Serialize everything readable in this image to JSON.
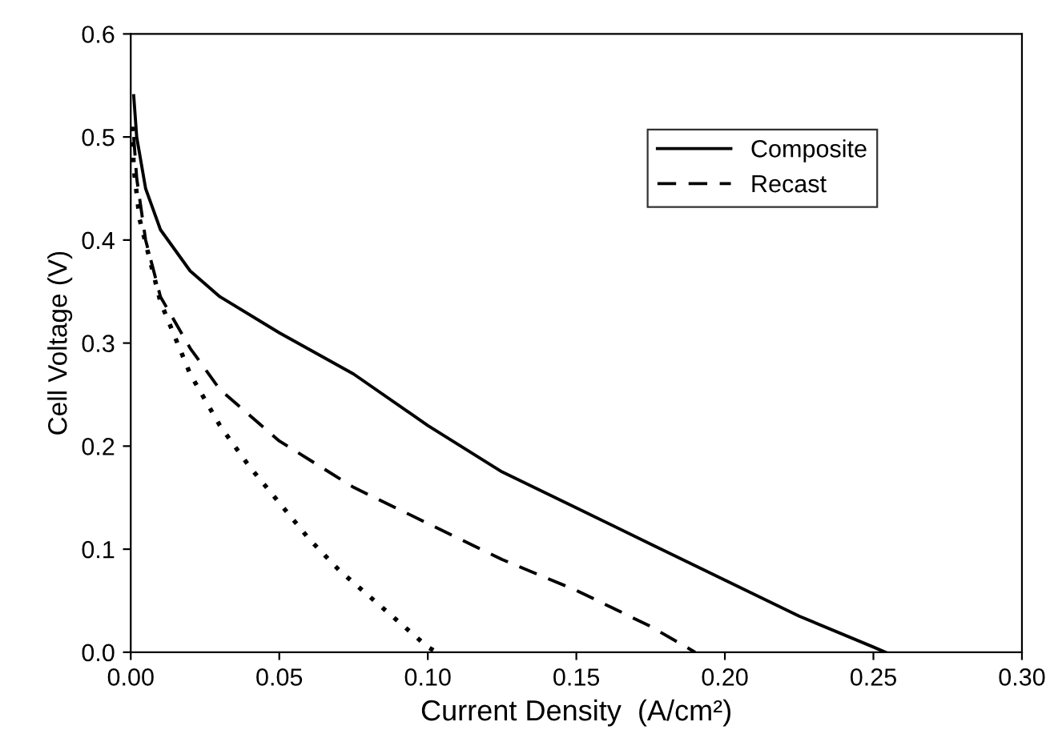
{
  "chart_data": {
    "type": "line",
    "xlabel": "Current Density  (A/cm²)",
    "ylabel": "Cell Voltage (V)",
    "xlim": [
      0,
      0.3
    ],
    "ylim": [
      0,
      0.6
    ],
    "xticks": [
      {
        "value": 0,
        "label": "0.00"
      },
      {
        "value": 0.05,
        "label": "0.05"
      },
      {
        "value": 0.1,
        "label": "0.10"
      },
      {
        "value": 0.15,
        "label": "0.15"
      },
      {
        "value": 0.2,
        "label": "0.20"
      },
      {
        "value": 0.25,
        "label": "0.25"
      },
      {
        "value": 0.3,
        "label": "0.30"
      }
    ],
    "yticks": [
      {
        "value": 0,
        "label": "0.0"
      },
      {
        "value": 0.1,
        "label": "0.1"
      },
      {
        "value": 0.2,
        "label": "0.2"
      },
      {
        "value": 0.3,
        "label": "0.3"
      },
      {
        "value": 0.4,
        "label": "0.4"
      },
      {
        "value": 0.5,
        "label": "0.5"
      },
      {
        "value": 0.6,
        "label": "0.6"
      }
    ],
    "grid": false,
    "legend": "top right",
    "marker": "none",
    "series": [
      {
        "color": "#000000",
        "line_style": "dotted",
        "x": [
          0.0005,
          0.001,
          0.003,
          0.01,
          0.02,
          0.03,
          0.04,
          0.05,
          0.06,
          0.07,
          0.08,
          0.09,
          0.1,
          0.103
        ],
        "values": [
          0.51,
          0.47,
          0.42,
          0.34,
          0.27,
          0.22,
          0.18,
          0.145,
          0.11,
          0.08,
          0.055,
          0.03,
          0.005,
          0
        ]
      },
      {
        "name": "Composite",
        "color": "#000000",
        "line_style": "solid",
        "x": [
          0.001,
          0.002,
          0.005,
          0.01,
          0.02,
          0.03,
          0.05,
          0.075,
          0.1,
          0.125,
          0.15,
          0.175,
          0.2,
          0.225,
          0.25,
          0.254
        ],
        "values": [
          0.54,
          0.5,
          0.45,
          0.41,
          0.37,
          0.345,
          0.31,
          0.27,
          0.22,
          0.175,
          0.14,
          0.105,
          0.07,
          0.035,
          0.005,
          0
        ]
      },
      {
        "name": "Recast",
        "color": "#000000",
        "line_style": "dashed",
        "x": [
          0.001,
          0.002,
          0.005,
          0.01,
          0.02,
          0.03,
          0.05,
          0.075,
          0.1,
          0.125,
          0.15,
          0.175,
          0.19
        ],
        "values": [
          0.5,
          0.46,
          0.4,
          0.345,
          0.295,
          0.255,
          0.205,
          0.16,
          0.125,
          0.09,
          0.06,
          0.025,
          0
        ]
      }
    ]
  }
}
